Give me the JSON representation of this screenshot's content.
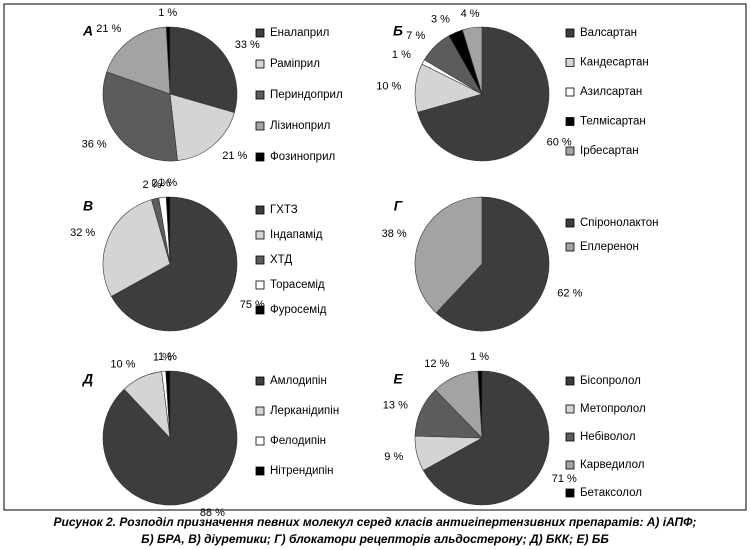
{
  "chart_data": [
    {
      "type": "pie",
      "title": "А",
      "categories": [
        "Еналаприл",
        "Раміприл",
        "Периндоприл",
        "Лізиноприл",
        "Фозиноприл"
      ],
      "values": [
        33,
        21,
        36,
        21,
        1
      ],
      "value_labels": [
        "33 %",
        "21 %",
        "36 %",
        "21 %",
        "1 %"
      ],
      "colors": [
        "#3d3d3d",
        "#d4d4d4",
        "#5c5c5c",
        "#a3a3a3",
        "#000000"
      ]
    },
    {
      "type": "pie",
      "title": "Б",
      "categories": [
        "Валсартан",
        "Кандесартан",
        "Азилсартан",
        null,
        "Телмісартан",
        "Ірбесартан"
      ],
      "values": [
        60,
        10,
        1,
        7,
        3,
        4
      ],
      "value_labels": [
        "60 %",
        "10 %",
        "1 %",
        "7 %",
        "3 %",
        "4 %"
      ],
      "colors": [
        "#3d3d3d",
        "#d4d4d4",
        "#ffffff",
        "#5c5c5c",
        "#000000",
        "#a3a3a3"
      ]
    },
    {
      "type": "pie",
      "title": "В",
      "categories": [
        "ГХТЗ",
        "Індапамід",
        "ХТД",
        "Торасемід",
        "Фуросемід"
      ],
      "values": [
        75,
        32,
        2,
        2,
        1
      ],
      "value_labels": [
        "75 %",
        "32 %",
        "2 %",
        "2 %",
        "1 %"
      ],
      "colors": [
        "#3d3d3d",
        "#d4d4d4",
        "#5c5c5c",
        "#ffffff",
        "#000000"
      ]
    },
    {
      "type": "pie",
      "title": "Г",
      "categories": [
        "Спіронолактон",
        "Еплеренон"
      ],
      "values": [
        62,
        38
      ],
      "value_labels": [
        "62 %",
        "38 %"
      ],
      "colors": [
        "#3d3d3d",
        "#a3a3a3"
      ]
    },
    {
      "type": "pie",
      "title": "Д",
      "categories": [
        "Амлодипін",
        "Лерканідипін",
        "Фелодипін",
        "Нітрендипін"
      ],
      "values": [
        88,
        10,
        1,
        1
      ],
      "value_labels": [
        "88 %",
        "10 %",
        "1 %",
        "1 %"
      ],
      "colors": [
        "#3d3d3d",
        "#d4d4d4",
        "#ffffff",
        "#000000"
      ]
    },
    {
      "type": "pie",
      "title": "Е",
      "categories": [
        "Бісопролол",
        "Метопролол",
        "Небіволол",
        "Карведилол",
        "Бетаксолол"
      ],
      "values": [
        71,
        9,
        13,
        12,
        1
      ],
      "value_labels": [
        "71 %",
        "9 %",
        "13 %",
        "12 %",
        "1 %"
      ],
      "colors": [
        "#3d3d3d",
        "#d4d4d4",
        "#5c5c5c",
        "#a3a3a3",
        "#000000"
      ]
    }
  ],
  "caption": [
    "Рисунок 2. Розподіл призначення певних молекул серед класів антигіпертензивних препаратів: А) іАПФ;",
    "Б) БРА, В) діуретики; Г) блокатори рецепторів альдостерону; Д) БКК; Е) ББ"
  ]
}
